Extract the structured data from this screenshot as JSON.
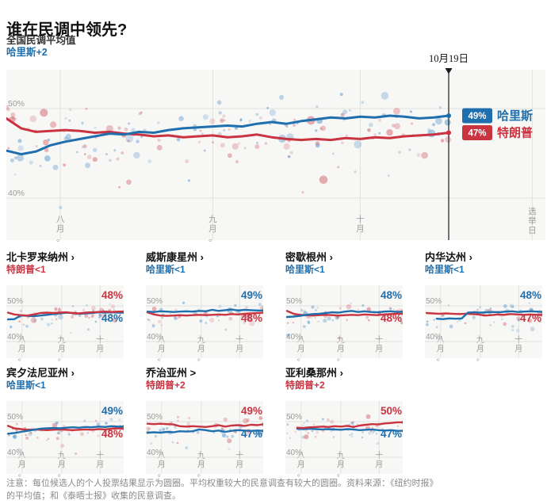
{
  "page": {
    "title": "谁在民调中领先?",
    "subtitle": "全国民调平均值",
    "lead": "哈里斯+2",
    "date_label": "10月19日",
    "note_line1": "注意：每位候选人的个人投票结果显示为圆圈。平均权重较大的民意调查有较大的圆圈。资料来源：《纽约时报》",
    "note_line2": "的平均值；和《泰晤士报》收集的民意调查。"
  },
  "colors": {
    "harris": "#1f6fae",
    "trump": "#ca3340",
    "harris_dot": "#3f87c4",
    "trump_dot": "#cf5560",
    "plot_bg": "#f7f7f5",
    "grid": "#e2e2df",
    "axis": "#9b9b9b",
    "marker": "#1a1a1a"
  },
  "chart_data": [
    {
      "type": "line+scatter",
      "kind": "main",
      "title": "全国民调平均值",
      "lead": {
        "text": "哈里斯+2",
        "key": "harris"
      },
      "ylim": [
        38,
        53
      ],
      "yticks": [
        50,
        40
      ],
      "xticks": [
        {
          "day": 11,
          "label": "八月。"
        },
        {
          "day": 42,
          "label": "九月。"
        },
        {
          "day": 72,
          "label": "十月"
        }
      ],
      "election_day": {
        "day": 107,
        "label": "选举日"
      },
      "marker": {
        "day": 90,
        "label": "10月19日"
      },
      "badges": [
        {
          "key": "harris",
          "pct": "49%",
          "name": "哈里斯"
        },
        {
          "key": "trump",
          "pct": "47%",
          "name": "特朗普"
        }
      ],
      "series": [
        {
          "key": "trump",
          "name": "特朗普",
          "end_label": "47%",
          "d0": 0,
          "d1": 90,
          "values": [
            48.9,
            47.8,
            47.4,
            47.5,
            47.6,
            47.5,
            47.3,
            47.4,
            47.2,
            47.1,
            46.9,
            47.0,
            46.8,
            46.9,
            47.0,
            46.8,
            46.9,
            47.1,
            46.8,
            46.6,
            46.5,
            46.6,
            46.5,
            46.7,
            46.6,
            46.8,
            46.7,
            46.9,
            47.0,
            47.1,
            47.3
          ]
        },
        {
          "key": "harris",
          "name": "哈里斯",
          "end_label": "49%",
          "d0": 0,
          "d1": 90,
          "values": [
            45.3,
            44.9,
            45.2,
            45.9,
            46.3,
            46.6,
            46.9,
            47.2,
            47.1,
            47.4,
            47.3,
            47.6,
            47.8,
            47.9,
            48.0,
            48.1,
            48.0,
            48.3,
            48.5,
            48.3,
            48.6,
            48.8,
            49.0,
            48.9,
            49.1,
            49.0,
            49.2,
            49.1,
            48.9,
            49.0,
            49.2
          ]
        }
      ],
      "scatter": {
        "count": 185,
        "seed": 11
      }
    },
    {
      "type": "line+scatter",
      "kind": "state",
      "row": 0,
      "col": 0,
      "name": "北卡罗来纳州",
      "arrow": "›",
      "lead": {
        "text": "特朗普<1",
        "key": "trump"
      },
      "ylim": [
        40,
        52
      ],
      "yticks": [
        50,
        40
      ],
      "xticks": [
        {
          "day": 11,
          "label": "八月。"
        },
        {
          "day": 42,
          "label": "九月。"
        },
        {
          "day": 72,
          "label": "十月"
        }
      ],
      "labels": [
        {
          "text": "48%",
          "key": "trump",
          "pos": "top"
        },
        {
          "text": "48%",
          "key": "harris",
          "pos": "bottom"
        }
      ],
      "series": [
        {
          "key": "harris",
          "end_label": "48%",
          "d0": 0,
          "d1": 91,
          "values": [
            46.2,
            46.3,
            47.3,
            47.2,
            47.1,
            47.3,
            47.5,
            47.7,
            47.9,
            48.1,
            48.0,
            47.8,
            47.9,
            48.0,
            48.2,
            48.1,
            48.2,
            48.1,
            48.1
          ]
        },
        {
          "key": "trump",
          "end_label": "48%",
          "d0": 0,
          "d1": 91,
          "values": [
            48.1,
            47.6,
            47.4,
            47.3,
            47.6,
            48.0,
            48.1,
            48.0,
            48.1,
            48.2,
            48.0,
            47.9,
            48.1,
            48.2,
            48.3,
            48.4,
            48.3,
            48.4,
            48.4
          ]
        }
      ],
      "scatter": {
        "count": 58,
        "seed": 21
      }
    },
    {
      "type": "line+scatter",
      "kind": "state",
      "row": 0,
      "col": 1,
      "name": "威斯康星州",
      "arrow": "›",
      "lead": {
        "text": "哈里斯<1",
        "key": "harris"
      },
      "ylim": [
        40,
        52
      ],
      "yticks": [
        50,
        40
      ],
      "xticks": [
        {
          "day": 11,
          "label": "八月。"
        },
        {
          "day": 42,
          "label": "九月。"
        },
        {
          "day": 72,
          "label": "十月"
        }
      ],
      "labels": [
        {
          "text": "49%",
          "key": "harris",
          "pos": "top"
        },
        {
          "text": "48%",
          "key": "trump",
          "pos": "bottom"
        }
      ],
      "series": [
        {
          "key": "trump",
          "end_label": "48%",
          "d0": 0,
          "d1": 91,
          "values": [
            48.2,
            47.6,
            47.3,
            47.2,
            47.3,
            47.4,
            47.3,
            47.4,
            47.5,
            47.4,
            47.5,
            47.6,
            47.5,
            47.7,
            47.6,
            47.8,
            47.9,
            48.0,
            48.1
          ]
        },
        {
          "key": "harris",
          "end_label": "49%",
          "d0": 0,
          "d1": 91,
          "values": [
            48.4,
            48.3,
            48.5,
            48.4,
            48.3,
            48.4,
            48.5,
            48.4,
            48.6,
            48.5,
            48.9,
            48.6,
            48.8,
            49.0,
            48.7,
            48.9,
            48.8,
            48.7,
            48.7
          ]
        }
      ],
      "scatter": {
        "count": 58,
        "seed": 22
      }
    },
    {
      "type": "line+scatter",
      "kind": "state",
      "row": 0,
      "col": 2,
      "name": "密歇根州",
      "arrow": "›",
      "lead": {
        "text": "哈里斯<1",
        "key": "harris"
      },
      "ylim": [
        40,
        52
      ],
      "yticks": [
        50,
        40
      ],
      "xticks": [
        {
          "day": 11,
          "label": "八月。"
        },
        {
          "day": 42,
          "label": "九月。"
        },
        {
          "day": 72,
          "label": "十月"
        }
      ],
      "labels": [
        {
          "text": "48%",
          "key": "harris",
          "pos": "top"
        },
        {
          "text": "48%",
          "key": "trump",
          "pos": "bottom"
        }
      ],
      "series": [
        {
          "key": "trump",
          "end_label": "48%",
          "d0": 0,
          "d1": 91,
          "values": [
            48.6,
            47.8,
            47.5,
            47.4,
            47.3,
            47.4,
            47.5,
            47.4,
            47.3,
            47.4,
            47.5,
            47.4,
            47.6,
            47.5,
            47.4,
            47.6,
            47.7,
            47.8,
            47.8
          ]
        },
        {
          "key": "harris",
          "end_label": "48%",
          "d0": 0,
          "d1": 91,
          "values": [
            46.9,
            47.0,
            47.2,
            47.5,
            47.7,
            47.8,
            48.0,
            48.2,
            48.1,
            48.4,
            48.6,
            48.3,
            48.5,
            48.3,
            48.2,
            48.4,
            48.5,
            48.3,
            48.4
          ]
        }
      ],
      "scatter": {
        "count": 58,
        "seed": 23
      }
    },
    {
      "type": "line+scatter",
      "kind": "state",
      "row": 0,
      "col": 3,
      "name": "内华达州",
      "arrow": "›",
      "lead": {
        "text": "哈里斯<1",
        "key": "harris"
      },
      "ylim": [
        40,
        52
      ],
      "yticks": [
        50,
        40
      ],
      "xticks": [
        {
          "day": 11,
          "label": "八月。"
        },
        {
          "day": 42,
          "label": "九月。"
        },
        {
          "day": 72,
          "label": "十月"
        }
      ],
      "labels": [
        {
          "text": "48%",
          "key": "harris",
          "pos": "top"
        },
        {
          "text": "47%",
          "key": "trump",
          "pos": "bottom"
        }
      ],
      "series": [
        {
          "key": "trump",
          "end_label": "47%",
          "d0": 0,
          "d1": 91,
          "values": [
            48.0,
            47.9,
            47.8,
            47.9,
            47.8,
            47.7,
            47.8,
            47.7,
            47.6,
            47.3,
            47.4,
            47.6,
            47.5,
            47.7,
            47.6,
            47.5,
            47.6,
            47.5,
            47.5
          ]
        },
        {
          "key": "harris",
          "end_label": "48%",
          "d0": 8,
          "d1": 91,
          "values": [
            46.4,
            46.3,
            46.5,
            46.4,
            46.5,
            48.1,
            48.2,
            48.1,
            48.2,
            48.3,
            48.2,
            48.4,
            48.5,
            48.3,
            48.4,
            48.5,
            48.4,
            48.3
          ]
        }
      ],
      "scatter": {
        "count": 58,
        "seed": 24
      }
    },
    {
      "type": "line+scatter",
      "kind": "state",
      "row": 1,
      "col": 0,
      "name": "宾夕法尼亚州",
      "arrow": "›",
      "lead": {
        "text": "哈里斯<1",
        "key": "harris"
      },
      "ylim": [
        40,
        52
      ],
      "yticks": [
        50,
        40
      ],
      "xticks": [
        {
          "day": 11,
          "label": "八月。"
        },
        {
          "day": 42,
          "label": "九月。"
        },
        {
          "day": 72,
          "label": "十月"
        }
      ],
      "labels": [
        {
          "text": "49%",
          "key": "harris",
          "pos": "top"
        },
        {
          "text": "48%",
          "key": "trump",
          "pos": "bottom"
        }
      ],
      "series": [
        {
          "key": "trump",
          "end_label": "48%",
          "d0": 0,
          "d1": 91,
          "values": [
            48.8,
            48.1,
            47.9,
            47.7,
            47.8,
            47.7,
            47.6,
            47.7,
            47.8,
            47.7,
            47.6,
            47.7,
            47.8,
            47.7,
            47.9,
            47.8,
            48.0,
            48.1,
            48.0
          ]
        },
        {
          "key": "harris",
          "end_label": "49%",
          "d0": 0,
          "d1": 91,
          "values": [
            46.6,
            46.8,
            47.1,
            47.4,
            47.7,
            48.0,
            48.1,
            48.2,
            48.1,
            48.3,
            48.4,
            48.3,
            48.5,
            48.4,
            48.6,
            48.5,
            48.7,
            48.6,
            48.6
          ]
        }
      ],
      "scatter": {
        "count": 58,
        "seed": 25
      }
    },
    {
      "type": "line+scatter",
      "kind": "state",
      "row": 1,
      "col": 1,
      "name": "乔治亚州",
      "arrow": ">",
      "lead": {
        "text": "特朗普+2",
        "key": "trump"
      },
      "ylim": [
        40,
        52
      ],
      "yticks": [
        50,
        40
      ],
      "xticks": [
        {
          "day": 11,
          "label": "八月。"
        },
        {
          "day": 42,
          "label": "九月。"
        },
        {
          "day": 72,
          "label": "十月"
        }
      ],
      "labels": [
        {
          "text": "49%",
          "key": "trump",
          "pos": "top"
        },
        {
          "text": "47%",
          "key": "harris",
          "pos": "bottom"
        }
      ],
      "series": [
        {
          "key": "harris",
          "end_label": "47%",
          "d0": 0,
          "d1": 91,
          "values": [
            46.9,
            47.0,
            46.9,
            47.1,
            47.0,
            47.3,
            47.2,
            47.3,
            47.8,
            47.6,
            47.3,
            47.5,
            47.1,
            47.4,
            47.6,
            47.5,
            47.4,
            47.5,
            47.4
          ]
        },
        {
          "key": "trump",
          "end_label": "49%",
          "d0": 0,
          "d1": 91,
          "values": [
            49.4,
            49.3,
            49.4,
            49.3,
            49.2,
            48.7,
            48.6,
            48.7,
            48.6,
            48.5,
            48.7,
            49.0,
            48.6,
            48.9,
            49.0,
            48.8,
            49.1,
            49.0,
            49.3
          ]
        }
      ],
      "scatter": {
        "count": 58,
        "seed": 26
      }
    },
    {
      "type": "line+scatter",
      "kind": "state",
      "row": 1,
      "col": 2,
      "name": "亚利桑那州",
      "arrow": "›",
      "lead": {
        "text": "特朗普+2",
        "key": "trump"
      },
      "ylim": [
        40,
        52
      ],
      "yticks": [
        50,
        40
      ],
      "xticks": [
        {
          "day": 11,
          "label": "八月。"
        },
        {
          "day": 42,
          "label": "九月。"
        },
        {
          "day": 72,
          "label": "十月"
        }
      ],
      "labels": [
        {
          "text": "50%",
          "key": "trump",
          "pos": "top"
        },
        {
          "text": "47%",
          "key": "harris",
          "pos": "bottom"
        }
      ],
      "series": [
        {
          "key": "harris",
          "end_label": "47%",
          "d0": 8,
          "d1": 91,
          "values": [
            48.0,
            47.9,
            48.0,
            47.9,
            47.8,
            47.9,
            47.8,
            47.7,
            47.9,
            47.8,
            47.6,
            47.7,
            47.8,
            47.6,
            47.5,
            47.6,
            47.4,
            47.4
          ]
        },
        {
          "key": "trump",
          "end_label": "50%",
          "d0": 8,
          "d1": 91,
          "values": [
            48.3,
            48.2,
            48.4,
            48.5,
            48.6,
            48.5,
            48.7,
            48.6,
            48.8,
            48.5,
            48.9,
            49.1,
            49.3,
            49.2,
            49.5,
            49.6,
            49.8,
            49.8
          ]
        }
      ],
      "scatter": {
        "count": 58,
        "seed": 27
      }
    }
  ]
}
